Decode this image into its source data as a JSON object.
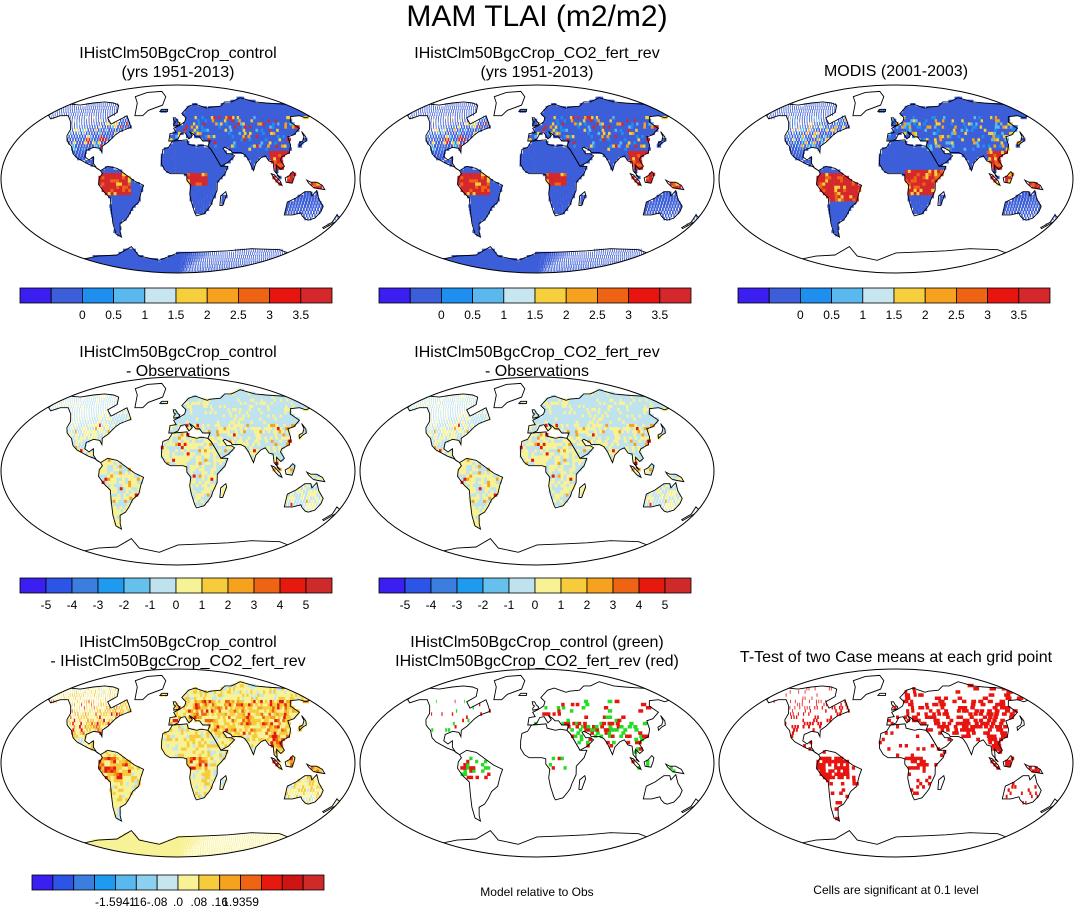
{
  "title": "MAM TLAI (m2/m2)",
  "panels": {
    "p1": {
      "line1": "IHistClm50BgcCrop_control",
      "line2": "(yrs 1951-2013)"
    },
    "p2": {
      "line1": "IHistClm50BgcCrop_CO2_fert_rev",
      "line2": "(yrs 1951-2013)"
    },
    "p3": {
      "line1": "MODIS (2001-2003)",
      "line2": ""
    },
    "p4": {
      "line1": "IHistClm50BgcCrop_control",
      "line2": "- Observations"
    },
    "p5": {
      "line1": "IHistClm50BgcCrop_CO2_fert_rev",
      "line2": "- Observations"
    },
    "p6": {
      "line1": "IHistClm50BgcCrop_control",
      "line2": "- IHistClm50BgcCrop_CO2_fert_rev"
    },
    "p7": {
      "line1": "IHistClm50BgcCrop_control (green)",
      "line2": "IHistClm50BgcCrop_CO2_fert_rev (red)"
    },
    "p8": {
      "line1": "T-Test of two Case means at each grid point",
      "line2": ""
    }
  },
  "notes": {
    "model_relative": "Model relative to Obs",
    "significance": "Cells are significant at 0.1 level"
  },
  "colorbars": {
    "abs": {
      "colors": [
        "#3b1ef0",
        "#3c5ed8",
        "#1e8fee",
        "#5ab8ee",
        "#c8e6f0",
        "#f5cf3c",
        "#f6a21e",
        "#ee6414",
        "#e8140f",
        "#d4282c"
      ],
      "labels": [
        "0",
        "0.5",
        "1",
        "1.5",
        "2",
        "2.5",
        "3",
        "3.5"
      ]
    },
    "bias": {
      "colors": [
        "#3b1ef0",
        "#2c54e6",
        "#3c7ee0",
        "#1e9aee",
        "#66c0ec",
        "#bfe3ee",
        "#f8f296",
        "#f6cc3c",
        "#f6a21e",
        "#ee6414",
        "#e6190f",
        "#cf2a2a"
      ],
      "labels": [
        "-5",
        "-4",
        "-3",
        "-2",
        "-1",
        "0",
        "1",
        "2",
        "3",
        "4",
        "5"
      ]
    },
    "diff": {
      "colors": [
        "#3b1ef0",
        "#2c54e6",
        "#3c7ee0",
        "#1e9aee",
        "#5ab8ee",
        "#8ccfee",
        "#c5e6ef",
        "#f8f296",
        "#f6cc3c",
        "#f6a21e",
        "#ee6414",
        "#e6190f",
        "#cf1414",
        "#cf2a2a"
      ],
      "labels": [
        "-1.5941",
        "-.16",
        "-.08",
        ".0",
        ".08",
        ".16",
        "1.9359"
      ]
    }
  },
  "map_colors": {
    "sparse": "#3c5ed8",
    "forest": "#d4282c",
    "grass": "#f5cf3c",
    "bias_neg": "#bfe3ee",
    "bias_pos": "#f8f296",
    "sig": "#e8140f",
    "green": "#22dd22"
  }
}
